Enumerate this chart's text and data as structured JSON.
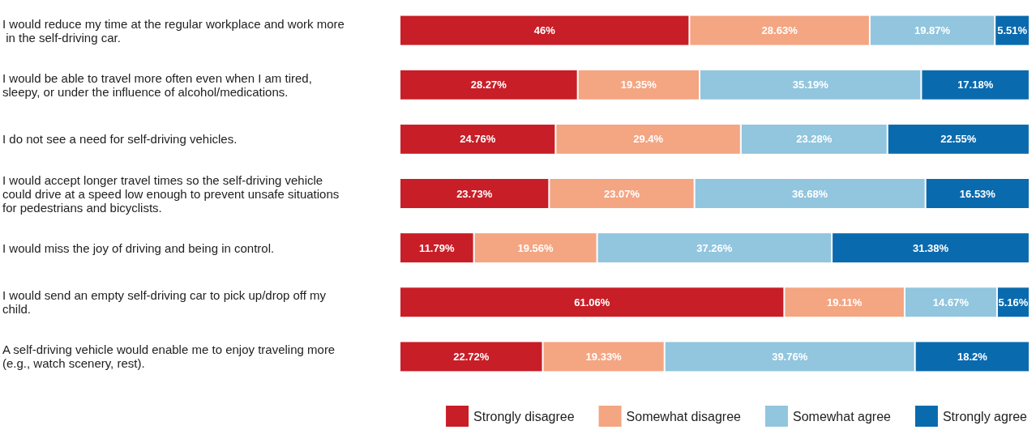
{
  "chart_data": {
    "type": "bar",
    "orientation": "horizontal",
    "stacked": true,
    "legend": "bottom right",
    "tick_labels": "y",
    "xlim": [
      0,
      100
    ],
    "categories": [
      "I would reduce my time at the regular workplace and work more in the self-driving car.",
      "I would be able to travel more often even when I am tired, sleepy, or under the influence of alcohol/medications.",
      "I do not see a need for self-driving vehicles.",
      "I would accept longer travel times so the self-driving vehicle could drive at a speed low enough to prevent unsafe situations for pedestrians and bicyclists.",
      "I would miss the joy of driving and being in control.",
      "I would send an empty self-driving car to pick up/drop off my child.",
      "A self-driving vehicle would enable me to enjoy traveling more (e.g., watch scenery, rest)."
    ],
    "series": [
      {
        "name": "Strongly disagree",
        "color": "#c81e27",
        "values": [
          46,
          28.27,
          24.76,
          23.73,
          11.79,
          61.06,
          22.72
        ],
        "value_labels": [
          "46%",
          "28.27%",
          "24.76%",
          "23.73%",
          "11.79%",
          "61.06%",
          "22.72%"
        ]
      },
      {
        "name": "Somewhat disagree",
        "color": "#f4a582",
        "values": [
          28.63,
          19.35,
          29.4,
          23.07,
          19.56,
          19.11,
          19.33
        ],
        "value_labels": [
          "28.63%",
          "19.35%",
          "29.4%",
          "23.07%",
          "19.56%",
          "19.11%",
          "19.33%"
        ]
      },
      {
        "name": "Somewhat agree",
        "color": "#92c5de",
        "values": [
          19.87,
          35.19,
          23.28,
          36.68,
          37.26,
          14.67,
          39.76
        ],
        "value_labels": [
          "19.87%",
          "35.19%",
          "23.28%",
          "36.68%",
          "37.26%",
          "14.67%",
          "39.76%"
        ]
      },
      {
        "name": "Strongly agree",
        "color": "#0a6aae",
        "values": [
          5.51,
          17.18,
          22.55,
          16.53,
          31.38,
          5.16,
          18.2
        ],
        "value_labels": [
          "5.51%",
          "17.18%",
          "22.55%",
          "16.53%",
          "31.38%",
          "5.16%",
          "18.2%"
        ]
      }
    ]
  }
}
